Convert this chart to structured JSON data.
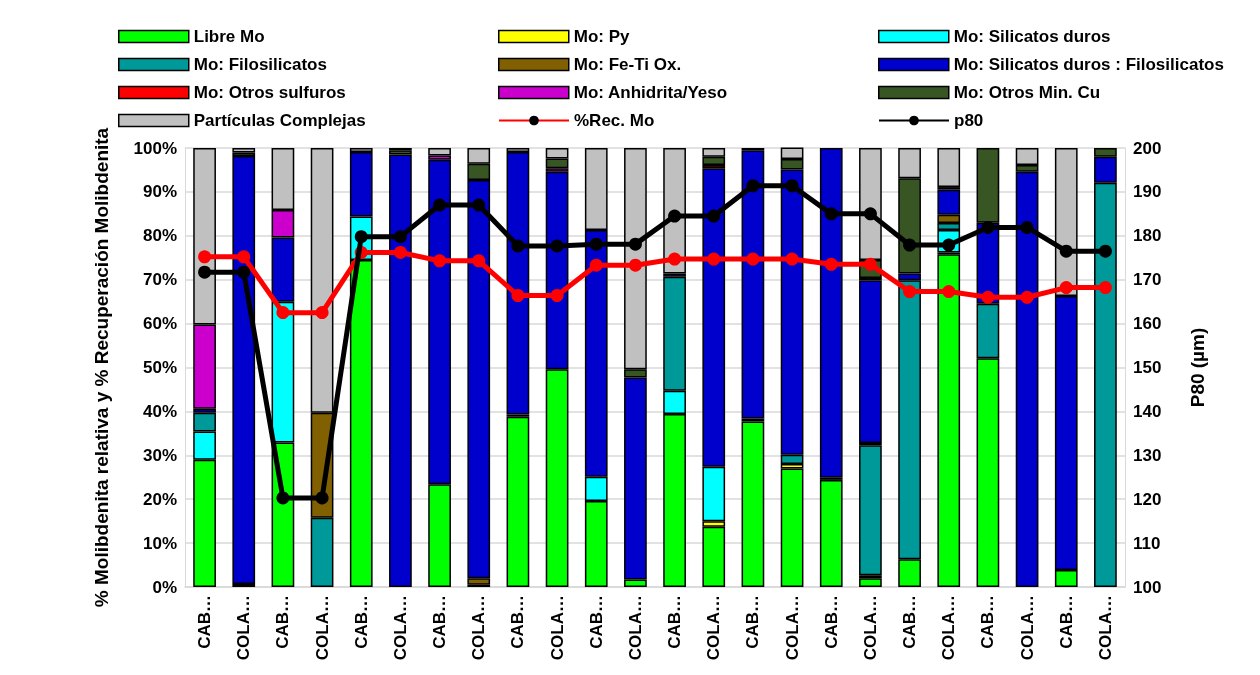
{
  "chart_data": {
    "type": "bar",
    "stacked": true,
    "categories": [
      "CAB…",
      "COLA…",
      "CAB…",
      "COLA…",
      "CAB…",
      "COLA…",
      "CAB…",
      "COLA…",
      "CAB…",
      "COLA…",
      "CAB…",
      "COLA…",
      "CAB…",
      "COLA…",
      "CAB…",
      "COLA…",
      "CAB…",
      "COLA…",
      "CAB…",
      "COLA…",
      "CAB…",
      "COLA…",
      "CAB…",
      "COLA…"
    ],
    "ylabel": "% Molibdenita relativa y % Recuperación Molibdenita",
    "y2label": "P80 (µm)",
    "ylim": [
      0,
      100
    ],
    "yticks": [
      {
        "value": 0,
        "label": "0%"
      },
      {
        "value": 10,
        "label": "10%"
      },
      {
        "value": 20,
        "label": "20%"
      },
      {
        "value": 30,
        "label": "30%"
      },
      {
        "value": 40,
        "label": "40%"
      },
      {
        "value": 50,
        "label": "50%"
      },
      {
        "value": 60,
        "label": "60%"
      },
      {
        "value": 70,
        "label": "70%"
      },
      {
        "value": 80,
        "label": "80%"
      },
      {
        "value": 90,
        "label": "90%"
      },
      {
        "value": 100,
        "label": "100%"
      }
    ],
    "y2lim": [
      100,
      200
    ],
    "y2ticks": [
      100,
      110,
      120,
      130,
      140,
      150,
      160,
      170,
      180,
      190,
      200
    ],
    "grid": "y",
    "legend": "top",
    "marker": "circle",
    "series": [
      {
        "name": "Libre Mo",
        "color": "#00ff00",
        "values": [
          29,
          null,
          32.9,
          null,
          74.5,
          null,
          23.4,
          null,
          38.8,
          49.6,
          19.6,
          1.7,
          39.4,
          13.7,
          37.7,
          27.0,
          24.4,
          2.0,
          6.3,
          75.8,
          52.1,
          null,
          3.9,
          null
        ]
      },
      {
        "name": "Mo: Py",
        "color": "#ffff00",
        "values": [
          null,
          null,
          null,
          null,
          null,
          null,
          null,
          0.5,
          null,
          null,
          null,
          null,
          null,
          1.3,
          null,
          1.0,
          null,
          0.7,
          null,
          0.4,
          null,
          null,
          null,
          null
        ]
      },
      {
        "name": "Mo: Silicatos duros",
        "color": "#00ffff",
        "values": [
          6.4,
          null,
          32.1,
          null,
          9.9,
          null,
          null,
          null,
          null,
          null,
          5.5,
          null,
          5.3,
          12.4,
          null,
          null,
          null,
          null,
          null,
          5.1,
          null,
          null,
          null,
          null
        ]
      },
      {
        "name": "Mo: Filosilicatos",
        "color": "#009999",
        "values": [
          4.3,
          null,
          null,
          15.8,
          null,
          null,
          null,
          null,
          0.5,
          null,
          null,
          null,
          26.0,
          null,
          0.7,
          2.1,
          0.5,
          29.6,
          63.6,
          1.6,
          12.4,
          null,
          null,
          92.1
        ]
      },
      {
        "name": "Mo: Fe-Ti Ox.",
        "color": "#806000",
        "values": [
          null,
          0.7,
          null,
          23.9,
          null,
          null,
          null,
          1.5,
          null,
          null,
          null,
          null,
          null,
          null,
          null,
          null,
          null,
          0.5,
          null,
          1.9,
          null,
          null,
          null,
          null
        ]
      },
      {
        "name": "Mo: Silicatos duros : Filosilicatos",
        "color": "#0000cc",
        "values": [
          0.9,
          97.5,
          14.6,
          null,
          14.7,
          98.5,
          73.9,
          90.7,
          59.8,
          45.0,
          56.2,
          46.0,
          0.7,
          68.0,
          61.1,
          65.0,
          75.1,
          37.1,
          1.5,
          5.7,
          18.5,
          94.6,
          62.4,
          5.9
        ]
      },
      {
        "name": "Mo: Otros sulfuros",
        "color": "#ff0000",
        "values": [
          null,
          null,
          null,
          null,
          null,
          null,
          null,
          null,
          null,
          null,
          null,
          null,
          null,
          0.7,
          null,
          null,
          null,
          0.5,
          null,
          null,
          null,
          null,
          null,
          null
        ]
      },
      {
        "name": "Mo: Anhidrita/Yeso",
        "color": "#cc00cc",
        "values": [
          19.2,
          null,
          6.3,
          null,
          null,
          null,
          1.0,
          null,
          null,
          0.8,
          null,
          null,
          null,
          null,
          null,
          null,
          null,
          null,
          null,
          0.6,
          null,
          null,
          null,
          null
        ]
      },
      {
        "name": "Mo: Otros Min. Cu",
        "color": "#375623",
        "values": [
          null,
          0.8,
          null,
          null,
          null,
          1.0,
          null,
          3.7,
          null,
          2.2,
          null,
          1.9,
          null,
          1.9,
          null,
          2.4,
          null,
          4.1,
          21.7,
          null,
          17.0,
          1.5,
          null,
          2.0
        ]
      },
      {
        "name": "Partículas Complejas",
        "color": "#c0c0c0",
        "values": [
          40.2,
          1.0,
          14.1,
          60.3,
          0.9,
          0.5,
          1.7,
          3.6,
          0.9,
          2.4,
          18.7,
          50.4,
          28.6,
          2.0,
          0.5,
          2.6,
          null,
          25.5,
          6.9,
          8.9,
          null,
          3.9,
          33.7,
          null
        ]
      },
      {
        "name": "%Rec. Mo",
        "type": "line",
        "color": "#ff0000",
        "values": [
          75.2,
          75.2,
          62.5,
          62.5,
          76.2,
          76.2,
          74.3,
          74.3,
          66.4,
          66.4,
          73.3,
          73.3,
          74.7,
          74.7,
          74.7,
          74.7,
          73.5,
          73.5,
          67.3,
          67.3,
          66.0,
          66.0,
          68.2,
          68.2
        ]
      },
      {
        "name": "p80",
        "type": "line",
        "axis": "y2",
        "color": "#000000",
        "values": [
          171.7,
          171.7,
          120.3,
          120.3,
          179.8,
          179.8,
          187,
          187,
          177.7,
          177.7,
          178.1,
          178.1,
          184.5,
          184.5,
          191.4,
          191.4,
          185,
          185,
          177.9,
          177.9,
          181.9,
          181.9,
          176.5,
          176.5
        ]
      }
    ]
  }
}
